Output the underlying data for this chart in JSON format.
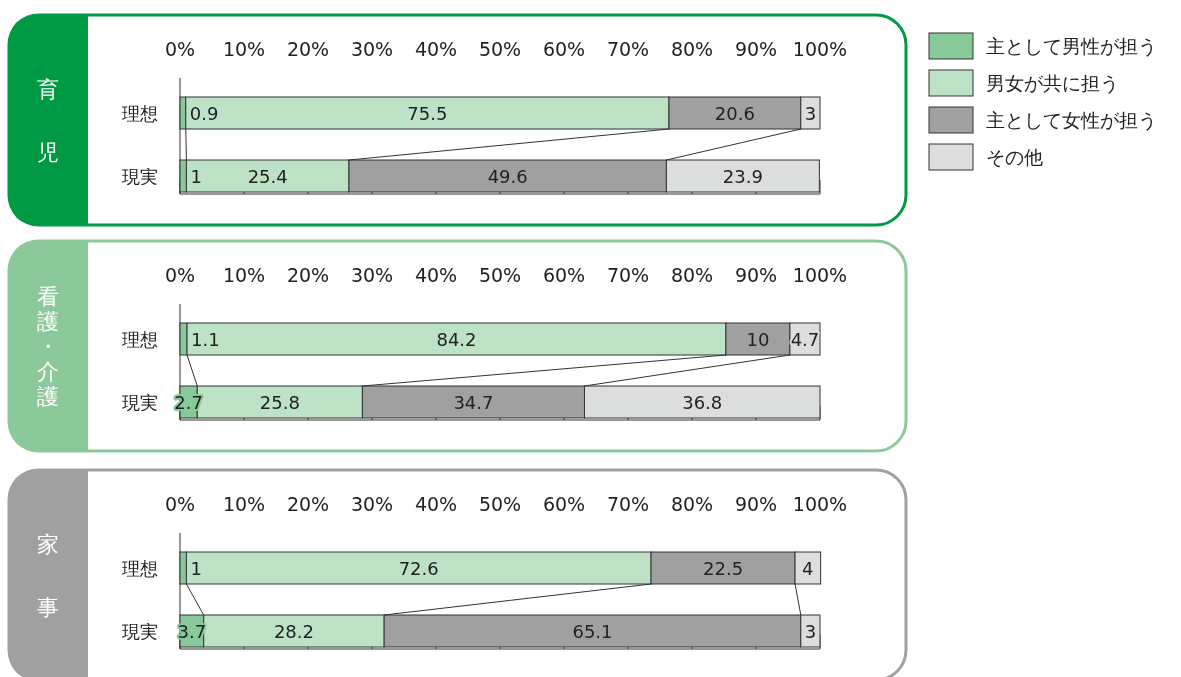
{
  "chart_data": [
    {
      "type": "bar",
      "orientation": "horizontal",
      "stacked": true,
      "title": "育児",
      "categories": [
        "理想",
        "現実"
      ],
      "xlim": [
        0,
        100
      ],
      "xticks": [
        {
          "value": 0,
          "label": "0%"
        },
        {
          "value": 10,
          "label": "10%"
        },
        {
          "value": 20,
          "label": "20%"
        },
        {
          "value": 30,
          "label": "30%"
        },
        {
          "value": 40,
          "label": "40%"
        },
        {
          "value": 50,
          "label": "50%"
        },
        {
          "value": 60,
          "label": "60%"
        },
        {
          "value": 70,
          "label": "70%"
        },
        {
          "value": 80,
          "label": "80%"
        },
        {
          "value": 90,
          "label": "90%"
        },
        {
          "value": 100,
          "label": "100%"
        }
      ],
      "data_labels": true,
      "legend": "right",
      "series": [
        {
          "name": "主として男性が担う",
          "color": "#88c99a",
          "values": [
            0.9,
            1
          ]
        },
        {
          "name": "男女が共に担う",
          "color": "#bde2c6",
          "values": [
            75.5,
            25.4
          ]
        },
        {
          "name": "主として女性が担う",
          "color": "#a0a0a0",
          "values": [
            20.6,
            49.6
          ]
        },
        {
          "name": "その他",
          "color": "#dcdddd",
          "values": [
            3,
            23.9
          ]
        }
      ]
    },
    {
      "type": "bar",
      "orientation": "horizontal",
      "stacked": true,
      "title": "看護・介護",
      "categories": [
        "理想",
        "現実"
      ],
      "xlim": [
        0,
        100
      ],
      "xticks": [
        {
          "value": 0,
          "label": "0%"
        },
        {
          "value": 10,
          "label": "10%"
        },
        {
          "value": 20,
          "label": "20%"
        },
        {
          "value": 30,
          "label": "30%"
        },
        {
          "value": 40,
          "label": "40%"
        },
        {
          "value": 50,
          "label": "50%"
        },
        {
          "value": 60,
          "label": "60%"
        },
        {
          "value": 70,
          "label": "70%"
        },
        {
          "value": 80,
          "label": "80%"
        },
        {
          "value": 90,
          "label": "90%"
        },
        {
          "value": 100,
          "label": "100%"
        }
      ],
      "data_labels": true,
      "series": [
        {
          "color": "#88c99a",
          "values": [
            1.1,
            2.7
          ]
        },
        {
          "color": "#bde2c6",
          "values": [
            84.2,
            25.8
          ]
        },
        {
          "color": "#a0a0a0",
          "values": [
            10,
            34.7
          ]
        },
        {
          "color": "#dcdddd",
          "values": [
            4.7,
            36.8
          ]
        }
      ]
    },
    {
      "type": "bar",
      "orientation": "horizontal",
      "stacked": true,
      "title": "家事",
      "categories": [
        "理想",
        "現実"
      ],
      "xlim": [
        0,
        100
      ],
      "xticks": [
        {
          "value": 0,
          "label": "0%"
        },
        {
          "value": 10,
          "label": "10%"
        },
        {
          "value": 20,
          "label": "20%"
        },
        {
          "value": 30,
          "label": "30%"
        },
        {
          "value": 40,
          "label": "40%"
        },
        {
          "value": 50,
          "label": "50%"
        },
        {
          "value": 60,
          "label": "60%"
        },
        {
          "value": 70,
          "label": "70%"
        },
        {
          "value": 80,
          "label": "80%"
        },
        {
          "value": 90,
          "label": "90%"
        },
        {
          "value": 100,
          "label": "100%"
        }
      ],
      "data_labels": true,
      "series": [
        {
          "color": "#88c99a",
          "values": [
            1,
            3.7
          ]
        },
        {
          "color": "#bde2c6",
          "values": [
            72.6,
            28.2
          ]
        },
        {
          "color": "#a0a0a0",
          "values": [
            22.5,
            65.1
          ]
        },
        {
          "color": "#dcdddd",
          "values": [
            4,
            3
          ]
        }
      ]
    }
  ]
}
